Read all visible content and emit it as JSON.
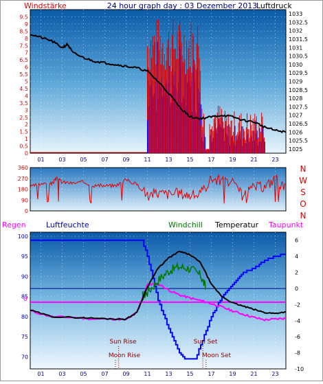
{
  "title": "24 hour graph day : 03 Dezember 2013",
  "colors": {
    "wind_speed": "#e00000",
    "wind_gust": "#0000ff",
    "pressure": "#000000",
    "direction": "#e00000",
    "humidity": "#0000ff",
    "temperature": "#000000",
    "windchill": "#007700",
    "dewpoint": "#ff00ff",
    "regen": "#ff00ff",
    "luftfeuchte": "#0000aa",
    "astro": "#880000",
    "zero_line": "#000080"
  },
  "chart_data": [
    {
      "type": "line",
      "name": "wind-pressure",
      "left_label": "Windstärke",
      "right_label": "Luftdruck",
      "left_ticks": [
        "0",
        "0.5",
        "1",
        "1.5",
        "2",
        "2.5",
        "3",
        "3.5",
        "4",
        "4.5",
        "5",
        "5.5",
        "6",
        "6.5",
        "7",
        "7.5",
        "8",
        "8.5",
        "9",
        "9.5"
      ],
      "right_ticks": [
        "1025",
        "1025.5",
        "1026",
        "1026.5",
        "1027",
        "1027.5",
        "1028",
        "1028.5",
        "1029",
        "1029.5",
        "1030",
        "1030.5",
        "1031",
        "1031.5",
        "1032",
        "1032.5",
        "1033"
      ],
      "x_ticks": [
        "01",
        "03",
        "05",
        "07",
        "09",
        "11",
        "13",
        "15",
        "17",
        "19",
        "21",
        "23"
      ],
      "ylim_left": [
        0,
        10
      ],
      "ylim_right": [
        1024.75,
        1033.25
      ],
      "pressure": [
        [
          0,
          1031.8
        ],
        [
          1,
          1031.6
        ],
        [
          2,
          1031.4
        ],
        [
          3,
          1031.0
        ],
        [
          3.5,
          1031.2
        ],
        [
          4,
          1030.7
        ],
        [
          5,
          1030.4
        ],
        [
          6,
          1030.2
        ],
        [
          7,
          1030.1
        ],
        [
          8,
          1030.0
        ],
        [
          9,
          1029.9
        ],
        [
          10,
          1029.8
        ],
        [
          11,
          1029.6
        ],
        [
          12,
          1029.0
        ],
        [
          13,
          1028.3
        ],
        [
          14,
          1027.5
        ],
        [
          15,
          1026.9
        ],
        [
          16,
          1026.8
        ],
        [
          17,
          1026.9
        ],
        [
          18,
          1027.0
        ],
        [
          19,
          1026.9
        ],
        [
          20,
          1026.7
        ],
        [
          21,
          1026.6
        ],
        [
          22,
          1026.3
        ],
        [
          23,
          1026.1
        ],
        [
          24,
          1026.0
        ]
      ]
    },
    {
      "type": "line",
      "name": "wind-direction",
      "left_ticks": [
        "0",
        "90",
        "180",
        "270",
        "360"
      ],
      "right_letters": [
        "N",
        "W",
        "S",
        "O",
        "N"
      ],
      "x_ticks": [
        "01",
        "03",
        "05",
        "07",
        "09",
        "11",
        "13",
        "15",
        "17",
        "19",
        "21",
        "23"
      ],
      "ylim": [
        0,
        360
      ],
      "series": [
        {
          "values": [
            [
              0,
              200
            ],
            [
              1,
              225
            ],
            [
              2,
              225
            ],
            [
              2.5,
              270
            ],
            [
              3,
              240
            ],
            [
              4,
              230
            ],
            [
              5,
              240
            ],
            [
              6,
              210
            ],
            [
              7,
              210
            ],
            [
              8,
              210
            ],
            [
              9,
              260
            ],
            [
              10,
              220
            ],
            [
              11,
              140
            ],
            [
              12,
              150
            ],
            [
              13,
              140
            ],
            [
              14,
              150
            ],
            [
              15,
              130
            ],
            [
              16,
              140
            ],
            [
              17,
              270
            ],
            [
              18,
              250
            ],
            [
              19,
              230
            ],
            [
              20,
              120
            ],
            [
              21,
              200
            ],
            [
              22,
              200
            ],
            [
              23,
              270
            ],
            [
              24,
              180
            ]
          ]
        }
      ]
    },
    {
      "type": "line",
      "name": "humidity-temperature",
      "legend": [
        "Regen",
        "Luftfeuchte",
        "Windchill",
        "Temperatur",
        "Taupunkt"
      ],
      "left_ticks": [
        "70",
        "75",
        "80",
        "85",
        "90",
        "95",
        "100"
      ],
      "right_ticks": [
        "6",
        "4",
        "2",
        "0",
        "-2",
        "-4",
        "-6",
        "-8",
        "-10"
      ],
      "x_ticks": [
        "01",
        "03",
        "05",
        "07",
        "09",
        "11",
        "13",
        "15",
        "17",
        "19",
        "21",
        "23"
      ],
      "ylim_left": [
        67,
        101
      ],
      "ylim_right": [
        -10,
        7
      ],
      "regen_label": "0",
      "annotations": {
        "sun_rise": "Sun Rise",
        "sun_set": "Sun Set",
        "moon_rise": "Moon Rise",
        "moon_set": "Moon Set"
      },
      "sun_rise_x": 8.3,
      "sun_set_x": 16.2,
      "moon_rise_x": 8.0,
      "moon_set_x": 16.5,
      "humidity": [
        [
          0,
          99
        ],
        [
          10.5,
          99
        ],
        [
          11,
          95
        ],
        [
          12,
          84
        ],
        [
          13,
          77
        ],
        [
          14,
          71
        ],
        [
          14.5,
          69.5
        ],
        [
          15.5,
          69.5
        ],
        [
          16,
          73
        ],
        [
          17,
          80
        ],
        [
          18,
          85
        ],
        [
          19,
          88
        ],
        [
          20,
          91
        ],
        [
          21,
          92
        ],
        [
          22,
          94
        ],
        [
          23,
          95
        ],
        [
          24,
          95.5
        ]
      ],
      "temperature": [
        [
          0,
          -2.7
        ],
        [
          2,
          -3.5
        ],
        [
          4,
          -3.6
        ],
        [
          6,
          -3.7
        ],
        [
          8,
          -3.8
        ],
        [
          9,
          -3.8
        ],
        [
          10,
          -3.0
        ],
        [
          11,
          0.2
        ],
        [
          12,
          2.5
        ],
        [
          13,
          3.8
        ],
        [
          14,
          4.6
        ],
        [
          15,
          4.2
        ],
        [
          16,
          3.2
        ],
        [
          17,
          0.5
        ],
        [
          18,
          -1.0
        ],
        [
          19,
          -1.8
        ],
        [
          20,
          -2.2
        ],
        [
          21,
          -2.6
        ],
        [
          22,
          -3.0
        ],
        [
          23,
          -3.1
        ],
        [
          24,
          -2.9
        ]
      ],
      "windchill": [
        [
          10.5,
          -1.0
        ],
        [
          11,
          -0.5
        ],
        [
          12,
          1.0
        ],
        [
          13,
          2.2
        ],
        [
          14,
          2.7
        ],
        [
          15,
          2.5
        ],
        [
          16,
          1.6
        ],
        [
          16.5,
          0.0
        ]
      ],
      "dewpoint": [
        [
          0,
          -2.8
        ],
        [
          2,
          -3.5
        ],
        [
          4,
          -3.6
        ],
        [
          6,
          -3.8
        ],
        [
          8,
          -3.8
        ],
        [
          9,
          -3.9
        ],
        [
          10,
          -3.0
        ],
        [
          11,
          0.5
        ],
        [
          12,
          0.6
        ],
        [
          13,
          -0.2
        ],
        [
          14,
          -0.8
        ],
        [
          15,
          -1.2
        ],
        [
          16,
          -1.5
        ],
        [
          17,
          -1.9
        ],
        [
          18,
          -2.3
        ],
        [
          19,
          -2.8
        ],
        [
          20,
          -3.2
        ],
        [
          21,
          -3.6
        ],
        [
          22,
          -3.9
        ],
        [
          23,
          -3.8
        ],
        [
          24,
          -3.7
        ]
      ]
    }
  ]
}
